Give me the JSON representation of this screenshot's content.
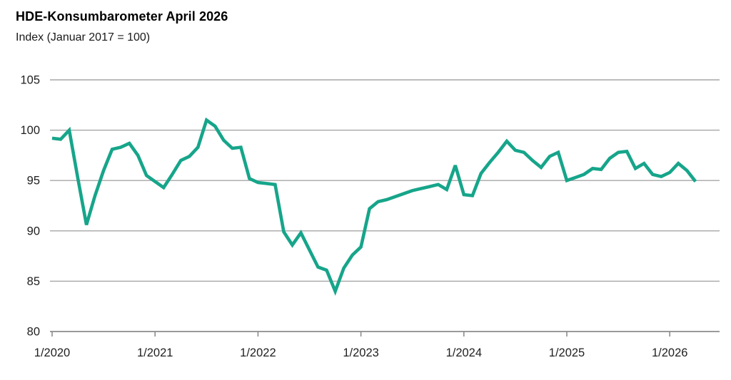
{
  "header": {
    "title": "HDE-Konsumbarometer April 2026",
    "subtitle": "Index (Januar 2017 = 100)"
  },
  "chart_data": {
    "type": "line",
    "title": "HDE-Konsumbarometer April 2026",
    "subtitle": "Index (Januar 2017 = 100)",
    "xlabel": "",
    "ylabel": "",
    "ylim": [
      80,
      105
    ],
    "y_ticks": [
      105,
      100,
      95,
      90,
      85,
      80
    ],
    "x_tick_labels": [
      "1/2020",
      "1/2021",
      "1/2022",
      "1/2023",
      "1/2024",
      "1/2025",
      "1/2026"
    ],
    "grid": "horizontal",
    "legend_position": "none",
    "line_color": "#16a58a",
    "grid_color": "#a6a6a6",
    "axis_color": "#8c8c8c",
    "text_color": "#1f1f1f",
    "series": [
      {
        "name": "HDE-Konsumbarometer",
        "start_month": "1/2020",
        "end_month": "4/2026",
        "frequency": "monthly",
        "values": [
          99.2,
          99.1,
          100.0,
          95.2,
          90.6,
          93.5,
          96.0,
          98.1,
          98.3,
          98.7,
          97.5,
          95.5,
          94.9,
          94.3,
          95.6,
          97.0,
          97.4,
          98.3,
          101.0,
          100.4,
          99.0,
          98.2,
          98.3,
          95.2,
          94.8,
          94.7,
          94.6,
          89.9,
          88.6,
          89.8,
          88.1,
          86.4,
          86.1,
          84.0,
          86.3,
          87.6,
          88.4,
          92.2,
          92.9,
          93.1,
          93.4,
          93.7,
          94.0,
          94.2,
          94.4,
          94.6,
          94.1,
          96.5,
          93.6,
          93.5,
          95.7,
          96.8,
          97.8,
          98.9,
          98.0,
          97.8,
          97.0,
          96.3,
          97.4,
          97.8,
          95.0,
          95.3,
          95.6,
          96.2,
          96.1,
          97.2,
          97.8,
          97.9,
          96.2,
          96.7,
          95.6,
          95.4,
          95.8,
          96.7,
          96.0,
          94.9
        ]
      }
    ]
  }
}
